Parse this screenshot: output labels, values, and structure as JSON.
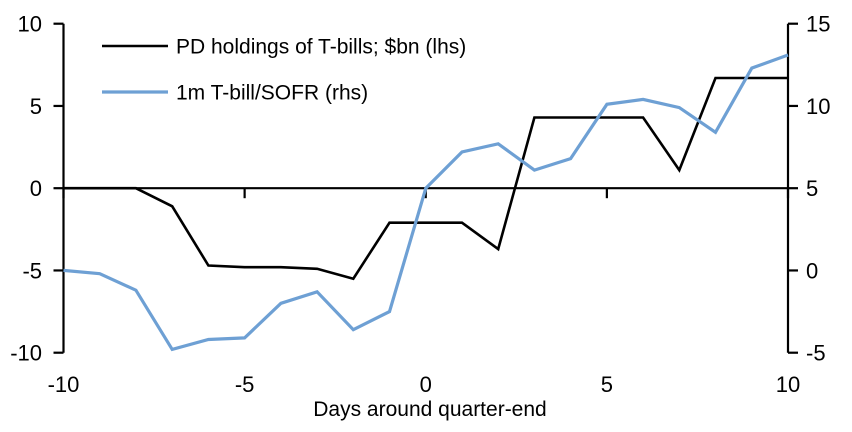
{
  "chart_data": {
    "type": "line",
    "title": "",
    "xlabel": "Days around quarter-end",
    "ylabel_left": "",
    "ylabel_right": "",
    "grid": "off",
    "legend_position": "top-left",
    "background_color": "#ffffff",
    "axis_color": "#000000",
    "x": [
      -10,
      -9,
      -8,
      -7,
      -6,
      -5,
      -4,
      -3,
      -2,
      -1,
      0,
      1,
      2,
      3,
      4,
      5,
      6,
      7,
      8,
      9,
      10
    ],
    "series": [
      {
        "name": "PD holdings of T-bills; $bn (lhs)",
        "axis": "left",
        "color": "#000000",
        "values": [
          0,
          0,
          0,
          -1.1,
          -4.7,
          -4.8,
          -4.8,
          -4.9,
          -5.5,
          -2.1,
          -2.1,
          -2.1,
          -3.7,
          4.3,
          4.3,
          4.3,
          4.3,
          1.1,
          6.7,
          6.7,
          6.7
        ]
      },
      {
        "name": "1m T-bill/SOFR (rhs)",
        "axis": "right",
        "color": "#6EA0D4",
        "values": [
          0.0,
          -0.2,
          -1.2,
          -4.8,
          -4.2,
          -4.1,
          -2.0,
          -1.3,
          -3.6,
          -2.5,
          5.0,
          7.2,
          7.7,
          6.1,
          6.8,
          10.1,
          10.4,
          9.9,
          8.4,
          12.3,
          13.1
        ]
      }
    ],
    "left_axis": {
      "ticks": [
        10,
        5,
        0,
        -5,
        -10
      ],
      "range": [
        -10,
        10
      ]
    },
    "right_axis": {
      "ticks": [
        15,
        10,
        5,
        0,
        -5
      ],
      "range": [
        -5,
        15
      ]
    },
    "x_axis": {
      "ticks": [
        -10,
        -5,
        0,
        5,
        10
      ],
      "range": [
        -10,
        10
      ]
    }
  }
}
